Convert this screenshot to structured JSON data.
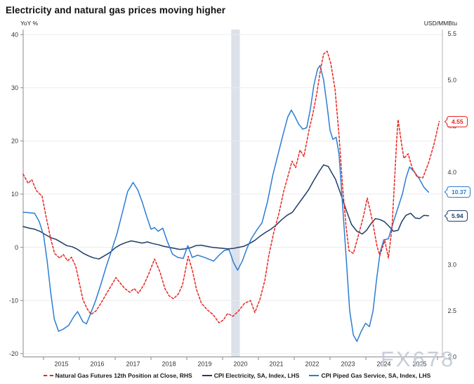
{
  "title": "Electricity and natural gas prices moving higher",
  "watermark": "FX678",
  "axes": {
    "left_unit": "YoY %",
    "right_unit": "USD/MMBtu",
    "left_ticks": [
      40,
      30,
      20,
      10,
      0,
      -10,
      -20
    ],
    "right_ticks": [
      5.5,
      5.0,
      4.5,
      4.0,
      3.5,
      3.0,
      2.5,
      2.0
    ],
    "years": [
      2015,
      2016,
      2017,
      2018,
      2019,
      2020,
      2021,
      2022,
      2023,
      2024,
      2025
    ],
    "ylim_left": [
      -20,
      40
    ],
    "ylim_right": [
      2.0,
      5.5
    ]
  },
  "colors": {
    "natural_gas_red": "#e8251f",
    "piped_gas_blue": "#2b7cd3",
    "electricity_navy": "#1f3d68",
    "recession_band": "#dce1ea",
    "gridline": "#ececec",
    "axis": "#8a8a8a",
    "watermark_gray": "#c3cad5"
  },
  "callouts": [
    {
      "label": "4.55",
      "value": 4.55,
      "axis": "RHS",
      "series": "Natural Gas Futures 12th Position at Close",
      "color": "#e8251f"
    },
    {
      "label": "10.37",
      "value": 10.37,
      "axis": "LHS",
      "series": "CPI Piped Gas Service",
      "color": "#2b7cd3"
    },
    {
      "label": "5.94",
      "value": 5.94,
      "axis": "LHS",
      "series": "CPI Electricity",
      "color": "#1f3d68"
    }
  ],
  "legend": [
    {
      "label": "Natural Gas Futures 12th Position at Close, RHS",
      "style": "dashed",
      "color": "#e8251f"
    },
    {
      "label": "CPI Electricity, SA, Index, LHS",
      "style": "solid",
      "color": "#1f3d68"
    },
    {
      "label": "CPI Piped Gas Service, SA, Index, LHS",
      "style": "solid",
      "color": "#2b7cd3"
    }
  ],
  "chart_data": {
    "type": "line",
    "title": "Electricity and natural gas prices moving higher",
    "x_unit": "decimal_year",
    "x_range": [
      2014.4,
      2026.2
    ],
    "ylabel_left": "YoY %",
    "ylabel_right": "USD/MMBtu",
    "ylim_left": [
      -20,
      40
    ],
    "ylim_right": [
      2.0,
      5.5
    ],
    "grid": true,
    "legend_position": "bottom",
    "recession_band": {
      "from": 2020.24,
      "to": 2020.48
    },
    "series": [
      {
        "name": "Natural Gas Futures 12th Position at Close, RHS",
        "axis": "RHS",
        "color": "#e8251f",
        "line_style": "dashed",
        "last_value": 4.55,
        "points": [
          [
            2014.43,
            3.98
          ],
          [
            2014.57,
            3.88
          ],
          [
            2014.67,
            3.92
          ],
          [
            2014.8,
            3.8
          ],
          [
            2014.96,
            3.74
          ],
          [
            2015.08,
            3.5
          ],
          [
            2015.2,
            3.28
          ],
          [
            2015.31,
            3.12
          ],
          [
            2015.45,
            3.07
          ],
          [
            2015.55,
            3.11
          ],
          [
            2015.67,
            3.04
          ],
          [
            2015.78,
            3.08
          ],
          [
            2015.9,
            2.98
          ],
          [
            2016.0,
            2.8
          ],
          [
            2016.1,
            2.62
          ],
          [
            2016.22,
            2.52
          ],
          [
            2016.33,
            2.46
          ],
          [
            2016.47,
            2.5
          ],
          [
            2016.63,
            2.6
          ],
          [
            2016.78,
            2.7
          ],
          [
            2016.92,
            2.79
          ],
          [
            2017.02,
            2.86
          ],
          [
            2017.14,
            2.8
          ],
          [
            2017.27,
            2.74
          ],
          [
            2017.41,
            2.7
          ],
          [
            2017.53,
            2.74
          ],
          [
            2017.65,
            2.69
          ],
          [
            2017.8,
            2.78
          ],
          [
            2017.94,
            2.9
          ],
          [
            2018.1,
            3.06
          ],
          [
            2018.25,
            2.92
          ],
          [
            2018.39,
            2.74
          ],
          [
            2018.51,
            2.66
          ],
          [
            2018.63,
            2.63
          ],
          [
            2018.76,
            2.68
          ],
          [
            2018.88,
            2.78
          ],
          [
            2019.04,
            3.09
          ],
          [
            2019.16,
            2.93
          ],
          [
            2019.27,
            2.73
          ],
          [
            2019.41,
            2.58
          ],
          [
            2019.57,
            2.51
          ],
          [
            2019.73,
            2.46
          ],
          [
            2019.9,
            2.37
          ],
          [
            2020.02,
            2.4
          ],
          [
            2020.14,
            2.47
          ],
          [
            2020.29,
            2.44
          ],
          [
            2020.45,
            2.5
          ],
          [
            2020.61,
            2.58
          ],
          [
            2020.78,
            2.61
          ],
          [
            2020.9,
            2.48
          ],
          [
            2021.04,
            2.62
          ],
          [
            2021.18,
            2.83
          ],
          [
            2021.29,
            3.1
          ],
          [
            2021.43,
            3.35
          ],
          [
            2021.57,
            3.55
          ],
          [
            2021.71,
            3.8
          ],
          [
            2021.82,
            3.95
          ],
          [
            2021.94,
            4.12
          ],
          [
            2022.04,
            4.05
          ],
          [
            2022.16,
            4.24
          ],
          [
            2022.27,
            4.17
          ],
          [
            2022.41,
            4.45
          ],
          [
            2022.53,
            4.65
          ],
          [
            2022.63,
            4.85
          ],
          [
            2022.73,
            5.1
          ],
          [
            2022.82,
            5.28
          ],
          [
            2022.92,
            5.31
          ],
          [
            2023.02,
            5.18
          ],
          [
            2023.14,
            4.9
          ],
          [
            2023.25,
            4.4
          ],
          [
            2023.35,
            3.85
          ],
          [
            2023.45,
            3.4
          ],
          [
            2023.53,
            3.15
          ],
          [
            2023.65,
            3.12
          ],
          [
            2023.78,
            3.3
          ],
          [
            2023.92,
            3.5
          ],
          [
            2024.04,
            3.72
          ],
          [
            2024.18,
            3.48
          ],
          [
            2024.31,
            3.2
          ],
          [
            2024.39,
            3.1
          ],
          [
            2024.53,
            3.26
          ],
          [
            2024.63,
            3.07
          ],
          [
            2024.73,
            3.4
          ],
          [
            2024.8,
            3.9
          ],
          [
            2024.86,
            4.35
          ],
          [
            2024.9,
            4.57
          ],
          [
            2024.98,
            4.35
          ],
          [
            2025.06,
            4.15
          ],
          [
            2025.18,
            4.2
          ],
          [
            2025.29,
            4.05
          ],
          [
            2025.43,
            3.95
          ],
          [
            2025.59,
            3.94
          ],
          [
            2025.75,
            4.1
          ],
          [
            2025.9,
            4.3
          ],
          [
            2026.05,
            4.55
          ]
        ]
      },
      {
        "name": "CPI Electricity, SA, Index, LHS",
        "axis": "LHS",
        "color": "#1f3d68",
        "line_style": "solid",
        "last_value": 5.94,
        "points": [
          [
            2014.43,
            3.9
          ],
          [
            2014.6,
            3.6
          ],
          [
            2014.75,
            3.4
          ],
          [
            2014.9,
            3.0
          ],
          [
            2015.05,
            2.4
          ],
          [
            2015.2,
            1.8
          ],
          [
            2015.35,
            1.5
          ],
          [
            2015.5,
            0.9
          ],
          [
            2015.65,
            0.3
          ],
          [
            2015.8,
            0.1
          ],
          [
            2015.95,
            -0.4
          ],
          [
            2016.1,
            -1.1
          ],
          [
            2016.25,
            -1.6
          ],
          [
            2016.4,
            -2.0
          ],
          [
            2016.55,
            -2.2
          ],
          [
            2016.7,
            -1.6
          ],
          [
            2016.85,
            -1.0
          ],
          [
            2017.0,
            -0.1
          ],
          [
            2017.15,
            0.5
          ],
          [
            2017.3,
            0.9
          ],
          [
            2017.45,
            1.2
          ],
          [
            2017.6,
            1.0
          ],
          [
            2017.75,
            0.8
          ],
          [
            2017.9,
            1.0
          ],
          [
            2018.05,
            0.7
          ],
          [
            2018.2,
            0.5
          ],
          [
            2018.35,
            0.2
          ],
          [
            2018.5,
            0.0
          ],
          [
            2018.65,
            -0.2
          ],
          [
            2018.8,
            -0.4
          ],
          [
            2018.95,
            -0.3
          ],
          [
            2019.1,
            -0.1
          ],
          [
            2019.25,
            0.3
          ],
          [
            2019.4,
            0.4
          ],
          [
            2019.55,
            0.2
          ],
          [
            2019.7,
            0.0
          ],
          [
            2019.85,
            -0.1
          ],
          [
            2020.0,
            -0.2
          ],
          [
            2020.15,
            -0.3
          ],
          [
            2020.3,
            -0.2
          ],
          [
            2020.45,
            0.0
          ],
          [
            2020.6,
            0.2
          ],
          [
            2020.75,
            0.7
          ],
          [
            2020.9,
            1.3
          ],
          [
            2021.05,
            2.1
          ],
          [
            2021.2,
            2.8
          ],
          [
            2021.35,
            3.4
          ],
          [
            2021.5,
            4.2
          ],
          [
            2021.65,
            5.2
          ],
          [
            2021.8,
            6.0
          ],
          [
            2021.95,
            6.6
          ],
          [
            2022.1,
            8.0
          ],
          [
            2022.25,
            9.4
          ],
          [
            2022.4,
            10.8
          ],
          [
            2022.55,
            12.6
          ],
          [
            2022.7,
            14.3
          ],
          [
            2022.82,
            15.5
          ],
          [
            2022.95,
            15.2
          ],
          [
            2023.05,
            14.0
          ],
          [
            2023.15,
            12.8
          ],
          [
            2023.3,
            10.0
          ],
          [
            2023.45,
            7.0
          ],
          [
            2023.6,
            4.3
          ],
          [
            2023.75,
            3.0
          ],
          [
            2023.9,
            2.5
          ],
          [
            2024.02,
            3.2
          ],
          [
            2024.14,
            4.4
          ],
          [
            2024.27,
            5.4
          ],
          [
            2024.4,
            5.2
          ],
          [
            2024.52,
            4.8
          ],
          [
            2024.64,
            4.0
          ],
          [
            2024.77,
            3.0
          ],
          [
            2024.9,
            3.2
          ],
          [
            2025.0,
            4.8
          ],
          [
            2025.12,
            6.0
          ],
          [
            2025.25,
            6.4
          ],
          [
            2025.38,
            5.5
          ],
          [
            2025.5,
            5.4
          ],
          [
            2025.62,
            6.0
          ],
          [
            2025.75,
            5.94
          ]
        ]
      },
      {
        "name": "CPI Piped Gas Service, SA, Index, LHS",
        "axis": "LHS",
        "color": "#2b7cd3",
        "line_style": "solid",
        "last_value": 10.37,
        "points": [
          [
            2014.43,
            6.6
          ],
          [
            2014.6,
            6.5
          ],
          [
            2014.75,
            6.4
          ],
          [
            2014.88,
            4.8
          ],
          [
            2015.0,
            2.3
          ],
          [
            2015.1,
            -2.5
          ],
          [
            2015.2,
            -8.5
          ],
          [
            2015.3,
            -13.5
          ],
          [
            2015.42,
            -15.8
          ],
          [
            2015.55,
            -15.4
          ],
          [
            2015.7,
            -14.7
          ],
          [
            2015.85,
            -13.0
          ],
          [
            2015.95,
            -12.1
          ],
          [
            2016.1,
            -14.0
          ],
          [
            2016.2,
            -14.4
          ],
          [
            2016.33,
            -12.2
          ],
          [
            2016.45,
            -10.1
          ],
          [
            2016.6,
            -7.0
          ],
          [
            2016.75,
            -3.6
          ],
          [
            2016.9,
            -0.6
          ],
          [
            2017.05,
            2.5
          ],
          [
            2017.2,
            6.5
          ],
          [
            2017.35,
            10.5
          ],
          [
            2017.5,
            12.2
          ],
          [
            2017.63,
            10.8
          ],
          [
            2017.75,
            8.6
          ],
          [
            2017.88,
            5.8
          ],
          [
            2018.0,
            3.4
          ],
          [
            2018.1,
            3.7
          ],
          [
            2018.2,
            3.0
          ],
          [
            2018.33,
            3.6
          ],
          [
            2018.45,
            1.2
          ],
          [
            2018.6,
            -1.3
          ],
          [
            2018.75,
            -1.9
          ],
          [
            2018.9,
            -2.1
          ],
          [
            2019.03,
            0.3
          ],
          [
            2019.15,
            -1.9
          ],
          [
            2019.3,
            -1.5
          ],
          [
            2019.45,
            -1.8
          ],
          [
            2019.6,
            -2.2
          ],
          [
            2019.75,
            -2.6
          ],
          [
            2019.9,
            -1.5
          ],
          [
            2020.05,
            -0.6
          ],
          [
            2020.18,
            -0.4
          ],
          [
            2020.3,
            -2.8
          ],
          [
            2020.42,
            -4.3
          ],
          [
            2020.55,
            -2.6
          ],
          [
            2020.68,
            -0.2
          ],
          [
            2020.8,
            1.6
          ],
          [
            2020.95,
            3.2
          ],
          [
            2021.1,
            4.6
          ],
          [
            2021.25,
            8.5
          ],
          [
            2021.4,
            13.5
          ],
          [
            2021.55,
            17.5
          ],
          [
            2021.7,
            21.5
          ],
          [
            2021.82,
            24.5
          ],
          [
            2021.92,
            25.8
          ],
          [
            2022.02,
            24.6
          ],
          [
            2022.12,
            23.2
          ],
          [
            2022.24,
            22.2
          ],
          [
            2022.35,
            22.5
          ],
          [
            2022.45,
            26.0
          ],
          [
            2022.55,
            30.5
          ],
          [
            2022.65,
            33.5
          ],
          [
            2022.72,
            34.2
          ],
          [
            2022.82,
            31.5
          ],
          [
            2022.92,
            26.5
          ],
          [
            2023.0,
            22.0
          ],
          [
            2023.08,
            20.3
          ],
          [
            2023.17,
            20.7
          ],
          [
            2023.25,
            17.5
          ],
          [
            2023.35,
            8.0
          ],
          [
            2023.45,
            -2.0
          ],
          [
            2023.55,
            -12.0
          ],
          [
            2023.65,
            -16.5
          ],
          [
            2023.75,
            -17.7
          ],
          [
            2023.87,
            -15.8
          ],
          [
            2023.99,
            -14.3
          ],
          [
            2024.1,
            -14.9
          ],
          [
            2024.2,
            -12.0
          ],
          [
            2024.3,
            -6.0
          ],
          [
            2024.4,
            -0.9
          ],
          [
            2024.5,
            1.4
          ],
          [
            2024.63,
            1.6
          ],
          [
            2024.78,
            5.0
          ],
          [
            2024.9,
            7.5
          ],
          [
            2025.02,
            10.0
          ],
          [
            2025.12,
            13.0
          ],
          [
            2025.22,
            15.1
          ],
          [
            2025.35,
            14.2
          ],
          [
            2025.5,
            12.8
          ],
          [
            2025.62,
            11.3
          ],
          [
            2025.75,
            10.37
          ]
        ]
      }
    ]
  }
}
